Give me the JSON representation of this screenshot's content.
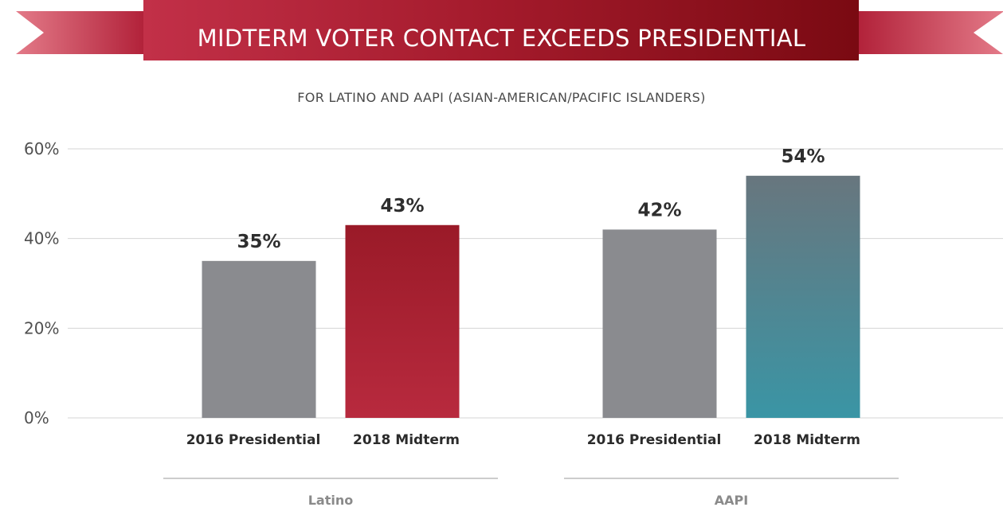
{
  "banner": {
    "title": "MIDTERM VOTER CONTACT EXCEEDS PRESIDENTIAL",
    "colors": {
      "dark": "#7a0a12",
      "mid": "#a31a2b",
      "light": "#c23048",
      "tail": "#cf3f56"
    }
  },
  "subtitle": "FOR LATINO AND AAPI (ASIAN-AMERICAN/PACIFIC ISLANDERS)",
  "chart_data": {
    "type": "bar",
    "title": "MIDTERM VOTER CONTACT EXCEEDS PRESIDENTIAL",
    "subtitle": "FOR LATINO AND AAPI (ASIAN-AMERICAN/PACIFIC ISLANDERS)",
    "ylim": [
      0,
      60
    ],
    "yticks": [
      0,
      20,
      40,
      60
    ],
    "ytick_labels": [
      "0%",
      "20%",
      "40%",
      "60%"
    ],
    "grid": true,
    "groups": [
      {
        "name": "Latino",
        "bars": [
          {
            "category": "2016 Presidential",
            "value": 35,
            "label": "35%",
            "color": "#8a8b8f"
          },
          {
            "category": "2018 Midterm",
            "value": 43,
            "label": "43%",
            "color": "#b82a3e",
            "color_top": "#9a1a28"
          }
        ]
      },
      {
        "name": "AAPI",
        "bars": [
          {
            "category": "2016 Presidential",
            "value": 42,
            "label": "42%",
            "color": "#8a8b8f"
          },
          {
            "category": "2018 Midterm",
            "value": 54,
            "label": "54%",
            "color": "#3a95a5",
            "color_top": "#68767e"
          }
        ]
      }
    ]
  }
}
